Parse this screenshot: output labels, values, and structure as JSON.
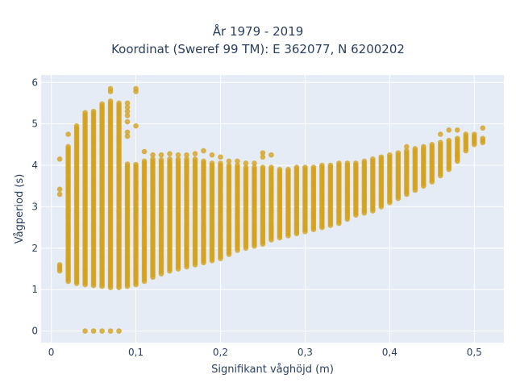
{
  "chart_data": {
    "type": "scatter",
    "title_lines": [
      "År 1979 - 2019",
      "Koordinat (Sweref 99 TM): E 362077, N 6200202"
    ],
    "xlabel": "Signifikant våghöjd (m)",
    "ylabel": "Vågperiod (s)",
    "xlim": [
      -0.012,
      0.535
    ],
    "ylim": [
      -0.28,
      6.18
    ],
    "x_ticks": [
      0,
      0.1,
      0.2,
      0.3,
      0.4,
      0.5
    ],
    "x_tick_labels": [
      "0",
      "0,1",
      "0,2",
      "0,3",
      "0,4",
      "0,5"
    ],
    "y_ticks": [
      0,
      1,
      2,
      3,
      4,
      5,
      6
    ],
    "y_tick_labels": [
      "0",
      "1",
      "2",
      "3",
      "4",
      "5",
      "6"
    ],
    "grid": true,
    "colors": {
      "marker": "#d4a017",
      "plot_bg": "#e5ecf6",
      "grid": "#ffffff",
      "text": "#2a3f5f"
    },
    "columns": [
      {
        "x": 0.01,
        "ymin": 1.45,
        "ymax": 1.6,
        "outliers": [
          3.3,
          3.42,
          4.15
        ]
      },
      {
        "x": 0.02,
        "ymin": 1.2,
        "ymax": 4.45,
        "outliers": [
          4.75
        ]
      },
      {
        "x": 0.03,
        "ymin": 1.15,
        "ymax": 4.95,
        "outliers": []
      },
      {
        "x": 0.04,
        "ymin": 1.12,
        "ymax": 5.3,
        "outliers": [
          0
        ]
      },
      {
        "x": 0.05,
        "ymin": 1.1,
        "ymax": 5.33,
        "outliers": [
          0
        ]
      },
      {
        "x": 0.06,
        "ymin": 1.08,
        "ymax": 5.48,
        "outliers": [
          0
        ]
      },
      {
        "x": 0.07,
        "ymin": 1.05,
        "ymax": 5.58,
        "outliers": [
          0,
          5.78,
          5.85
        ]
      },
      {
        "x": 0.08,
        "ymin": 1.05,
        "ymax": 5.5,
        "outliers": [
          0
        ]
      },
      {
        "x": 0.09,
        "ymin": 1.08,
        "ymax": 4.05,
        "outliers": [
          4.7,
          4.8,
          5.05,
          5.2,
          5.3,
          5.4,
          5.5
        ]
      },
      {
        "x": 0.1,
        "ymin": 1.12,
        "ymax": 4.05,
        "outliers": [
          4.95,
          5.78,
          5.85
        ]
      },
      {
        "x": 0.11,
        "ymin": 1.2,
        "ymax": 4.1,
        "outliers": [
          4.33
        ]
      },
      {
        "x": 0.12,
        "ymin": 1.3,
        "ymax": 4.15,
        "outliers": [
          4.25
        ]
      },
      {
        "x": 0.13,
        "ymin": 1.38,
        "ymax": 4.15,
        "outliers": [
          4.25
        ]
      },
      {
        "x": 0.14,
        "ymin": 1.45,
        "ymax": 4.15,
        "outliers": [
          4.28
        ]
      },
      {
        "x": 0.15,
        "ymin": 1.5,
        "ymax": 4.15,
        "outliers": [
          4.25
        ]
      },
      {
        "x": 0.16,
        "ymin": 1.55,
        "ymax": 4.15,
        "outliers": [
          4.25
        ]
      },
      {
        "x": 0.17,
        "ymin": 1.6,
        "ymax": 4.15,
        "outliers": [
          4.28
        ]
      },
      {
        "x": 0.18,
        "ymin": 1.65,
        "ymax": 4.1,
        "outliers": [
          4.35
        ]
      },
      {
        "x": 0.19,
        "ymin": 1.7,
        "ymax": 4.05,
        "outliers": [
          4.25
        ]
      },
      {
        "x": 0.2,
        "ymin": 1.75,
        "ymax": 4.05,
        "outliers": [
          4.2
        ]
      },
      {
        "x": 0.21,
        "ymin": 1.85,
        "ymax": 4.0,
        "outliers": [
          4.1
        ]
      },
      {
        "x": 0.22,
        "ymin": 1.95,
        "ymax": 4.0,
        "outliers": [
          4.1
        ]
      },
      {
        "x": 0.23,
        "ymin": 2.0,
        "ymax": 3.95,
        "outliers": [
          4.05
        ]
      },
      {
        "x": 0.24,
        "ymin": 2.05,
        "ymax": 3.95,
        "outliers": [
          4.05
        ]
      },
      {
        "x": 0.25,
        "ymin": 2.1,
        "ymax": 3.95,
        "outliers": [
          4.2,
          4.3
        ]
      },
      {
        "x": 0.26,
        "ymin": 2.2,
        "ymax": 3.95,
        "outliers": [
          4.25
        ]
      },
      {
        "x": 0.27,
        "ymin": 2.25,
        "ymax": 3.9,
        "outliers": []
      },
      {
        "x": 0.28,
        "ymin": 2.3,
        "ymax": 3.9,
        "outliers": []
      },
      {
        "x": 0.29,
        "ymin": 2.35,
        "ymax": 3.95,
        "outliers": []
      },
      {
        "x": 0.3,
        "ymin": 2.4,
        "ymax": 3.95,
        "outliers": []
      },
      {
        "x": 0.31,
        "ymin": 2.45,
        "ymax": 3.95,
        "outliers": []
      },
      {
        "x": 0.32,
        "ymin": 2.5,
        "ymax": 4.0,
        "outliers": []
      },
      {
        "x": 0.33,
        "ymin": 2.55,
        "ymax": 4.0,
        "outliers": []
      },
      {
        "x": 0.34,
        "ymin": 2.6,
        "ymax": 4.05,
        "outliers": []
      },
      {
        "x": 0.35,
        "ymin": 2.7,
        "ymax": 4.05,
        "outliers": []
      },
      {
        "x": 0.36,
        "ymin": 2.8,
        "ymax": 4.05,
        "outliers": []
      },
      {
        "x": 0.37,
        "ymin": 2.85,
        "ymax": 4.1,
        "outliers": []
      },
      {
        "x": 0.38,
        "ymin": 2.9,
        "ymax": 4.15,
        "outliers": []
      },
      {
        "x": 0.39,
        "ymin": 3.0,
        "ymax": 4.2,
        "outliers": []
      },
      {
        "x": 0.4,
        "ymin": 3.1,
        "ymax": 4.25,
        "outliers": []
      },
      {
        "x": 0.41,
        "ymin": 3.2,
        "ymax": 4.3,
        "outliers": []
      },
      {
        "x": 0.42,
        "ymin": 3.3,
        "ymax": 4.35,
        "outliers": [
          4.45
        ]
      },
      {
        "x": 0.43,
        "ymin": 3.4,
        "ymax": 4.4,
        "outliers": []
      },
      {
        "x": 0.44,
        "ymin": 3.5,
        "ymax": 4.45,
        "outliers": []
      },
      {
        "x": 0.45,
        "ymin": 3.6,
        "ymax": 4.5,
        "outliers": []
      },
      {
        "x": 0.46,
        "ymin": 3.75,
        "ymax": 4.55,
        "outliers": [
          4.75
        ]
      },
      {
        "x": 0.47,
        "ymin": 3.9,
        "ymax": 4.6,
        "outliers": [
          4.85
        ]
      },
      {
        "x": 0.48,
        "ymin": 4.1,
        "ymax": 4.65,
        "outliers": [
          4.25,
          4.85
        ]
      },
      {
        "x": 0.49,
        "ymin": 4.35,
        "ymax": 4.75,
        "outliers": []
      },
      {
        "x": 0.5,
        "ymin": 4.5,
        "ymax": 4.75,
        "outliers": []
      },
      {
        "x": 0.51,
        "ymin": 4.55,
        "ymax": 4.65,
        "outliers": [
          4.9
        ]
      }
    ]
  }
}
